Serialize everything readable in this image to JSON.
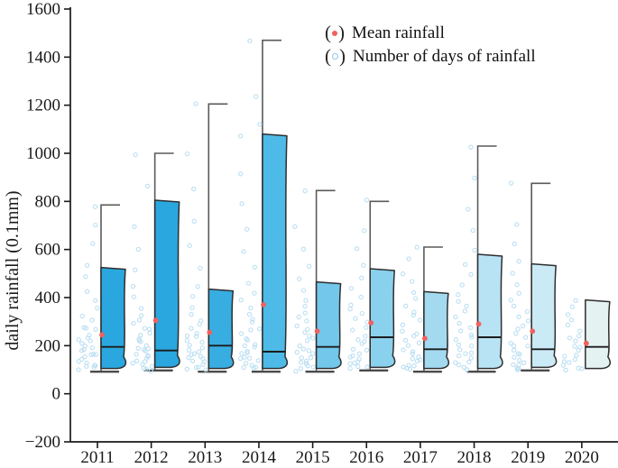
{
  "figure": {
    "y_axis_title": "daily rainfall (0.1mm)",
    "legend": {
      "mean_label": "Mean rainfall",
      "days_label": "Number of days of rainfall",
      "mean_marker_color": "#f0615f",
      "days_marker_color": "#8fc6e8"
    }
  },
  "chart_data": {
    "type": "box-violin",
    "title": "",
    "xlabel": "",
    "ylabel": "daily rainfall (0.1mm)",
    "ylim": [
      -200,
      1600
    ],
    "ytick_step": 200,
    "yticks": [
      -200,
      0,
      200,
      400,
      600,
      800,
      1000,
      1200,
      1400,
      1600
    ],
    "grid": false,
    "legend_position": "top-right",
    "categories": [
      "2011",
      "2012",
      "2013",
      "2014",
      "2015",
      "2016",
      "2017",
      "2018",
      "2019",
      "2020"
    ],
    "dot_outline_color": "#bcdff2",
    "mean_dot_color": "#f0615f",
    "series": [
      {
        "year": "2011",
        "whisker_max": 785,
        "box_top": 525,
        "mean": 245,
        "median": 195,
        "box_bottom": 105,
        "fill": "#2aa7df",
        "days_points": [
          105,
          110,
          115,
          120,
          125,
          130,
          135,
          140,
          150,
          155,
          160,
          170,
          180,
          185,
          190,
          200,
          210,
          215,
          225,
          235,
          250,
          260,
          270,
          280,
          300,
          320,
          350,
          390,
          430,
          480,
          540,
          620,
          700,
          785
        ]
      },
      {
        "year": "2012",
        "whisker_max": 1000,
        "box_top": 805,
        "mean": 305,
        "median": 180,
        "box_bottom": 110,
        "fill": "#2aa7df",
        "days_points": [
          100,
          105,
          110,
          115,
          120,
          125,
          130,
          140,
          145,
          150,
          160,
          165,
          175,
          180,
          190,
          195,
          205,
          215,
          220,
          230,
          245,
          255,
          265,
          275,
          290,
          310,
          330,
          360,
          400,
          450,
          520,
          600,
          700,
          870,
          1000
        ]
      },
      {
        "year": "2013",
        "whisker_max": 1205,
        "box_top": 435,
        "mean": 255,
        "median": 200,
        "box_bottom": 105,
        "fill": "#38ade2",
        "days_points": [
          100,
          105,
          110,
          118,
          122,
          128,
          135,
          142,
          148,
          155,
          162,
          170,
          178,
          185,
          192,
          200,
          210,
          220,
          232,
          245,
          258,
          272,
          290,
          310,
          335,
          365,
          400,
          450,
          520,
          610,
          720,
          850,
          1000,
          1205
        ]
      },
      {
        "year": "2014",
        "whisker_max": 1470,
        "box_top": 1080,
        "mean": 370,
        "median": 175,
        "box_bottom": 105,
        "fill": "#4dbae7",
        "days_points": [
          105,
          110,
          116,
          122,
          128,
          134,
          141,
          148,
          156,
          164,
          172,
          181,
          190,
          200,
          211,
          222,
          234,
          247,
          261,
          276,
          292,
          310,
          330,
          355,
          385,
          420,
          465,
          520,
          590,
          680,
          790,
          920,
          1065,
          1120,
          1240,
          1470
        ]
      },
      {
        "year": "2015",
        "whisker_max": 845,
        "box_top": 465,
        "mean": 260,
        "median": 195,
        "box_bottom": 105,
        "fill": "#72c7ea",
        "days_points": [
          100,
          106,
          112,
          118,
          124,
          131,
          138,
          146,
          154,
          162,
          171,
          181,
          191,
          202,
          214,
          226,
          239,
          253,
          268,
          284,
          301,
          320,
          340,
          365,
          395,
          430,
          475,
          530,
          600,
          690,
          845
        ]
      },
      {
        "year": "2016",
        "whisker_max": 800,
        "box_top": 520,
        "mean": 295,
        "median": 235,
        "box_bottom": 110,
        "fill": "#8ad1ed",
        "days_points": [
          102,
          108,
          114,
          121,
          128,
          136,
          144,
          152,
          161,
          171,
          181,
          192,
          204,
          216,
          229,
          243,
          258,
          274,
          291,
          309,
          329,
          351,
          376,
          405,
          440,
          482,
          535,
          600,
          680,
          800
        ]
      },
      {
        "year": "2017",
        "whisker_max": 610,
        "box_top": 425,
        "mean": 230,
        "median": 185,
        "box_bottom": 105,
        "fill": "#a3daf0",
        "days_points": [
          100,
          105,
          111,
          117,
          124,
          131,
          139,
          147,
          156,
          165,
          175,
          186,
          197,
          209,
          222,
          236,
          250,
          266,
          283,
          301,
          320,
          342,
          366,
          393,
          424,
          460,
          505,
          560,
          610
        ]
      },
      {
        "year": "2018",
        "whisker_max": 1030,
        "box_top": 580,
        "mean": 290,
        "median": 235,
        "box_bottom": 105,
        "fill": "#b8e3f4",
        "days_points": [
          101,
          107,
          113,
          120,
          127,
          135,
          143,
          152,
          161,
          171,
          182,
          193,
          205,
          218,
          232,
          246,
          262,
          279,
          297,
          316,
          337,
          360,
          386,
          415,
          449,
          489,
          537,
          597,
          672,
          770,
          895,
          1030
        ]
      },
      {
        "year": "2019",
        "whisker_max": 875,
        "box_top": 540,
        "mean": 260,
        "median": 185,
        "box_bottom": 110,
        "fill": "#caeaf6",
        "days_points": [
          100,
          106,
          112,
          119,
          126,
          134,
          142,
          151,
          160,
          170,
          181,
          192,
          204,
          217,
          231,
          246,
          262,
          279,
          297,
          317,
          339,
          363,
          390,
          421,
          457,
          500,
          552,
          617,
          700,
          875
        ]
      },
      {
        "year": "2020",
        "whisker_max": null,
        "box_top": 390,
        "mean": 210,
        "median": 195,
        "box_bottom": 105,
        "fill": "#e4f3f2",
        "days_points": [
          100,
          106,
          113,
          120,
          128,
          136,
          145,
          154,
          164,
          175,
          187,
          200,
          214,
          229,
          245,
          263,
          283,
          305,
          330,
          360,
          390
        ]
      }
    ]
  }
}
